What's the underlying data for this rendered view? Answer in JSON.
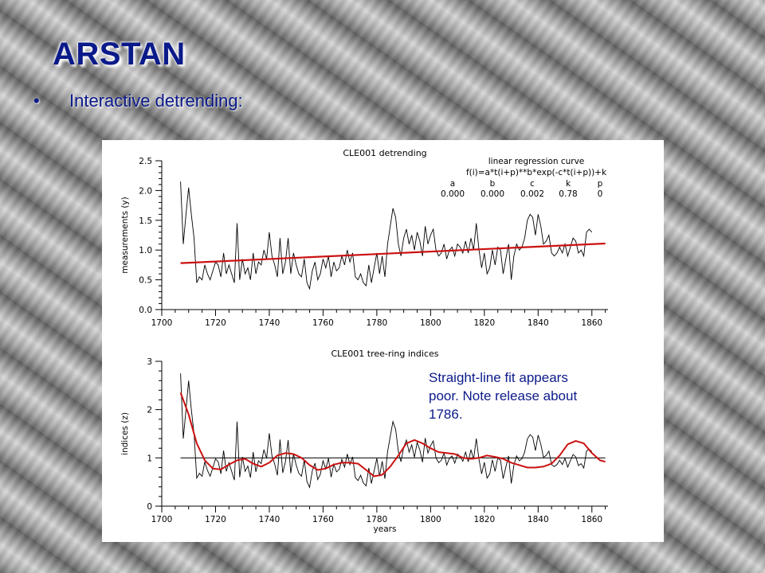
{
  "slide": {
    "title": "ARSTAN",
    "bullet": "Interactive detrending:",
    "note_lines": [
      "Straight-line fit appears",
      "poor. Note release about",
      "1786."
    ]
  },
  "colors": {
    "title": "#0b1a8a",
    "fit_curve": "#cc1111",
    "data_line": "#000000"
  },
  "chart_data": [
    {
      "type": "line",
      "title": "CLE001 detrending",
      "xlabel": "",
      "ylabel": "measurements (y)",
      "xlim": [
        1700,
        1866
      ],
      "ylim": [
        0.0,
        2.5
      ],
      "xticks": [
        "1700",
        "1720",
        "1740",
        "1760",
        "1780",
        "1800",
        "1820",
        "1840",
        "1860"
      ],
      "yticks": [
        "0.0",
        "0.5",
        "1.0",
        "1.5",
        "2.0",
        "2.5"
      ],
      "annotation": {
        "heading": "linear regression curve",
        "formula": "f(i)=a*t(i+p)**b*exp(-c*t(i+p))+k",
        "param_names": [
          "a",
          "b",
          "c",
          "k",
          "p"
        ],
        "param_values": [
          "0.000",
          "0.000",
          "0.002",
          "0.78",
          "0"
        ]
      },
      "series": [
        {
          "years_start": 1707,
          "years_end": 1865,
          "values": [
            2.15,
            1.1,
            1.6,
            2.05,
            1.6,
            1.2,
            0.45,
            0.55,
            0.5,
            0.75,
            0.6,
            0.5,
            0.65,
            0.8,
            0.75,
            0.55,
            0.95,
            0.6,
            0.75,
            0.6,
            0.45,
            1.45,
            0.5,
            0.85,
            0.6,
            0.7,
            0.5,
            0.95,
            0.6,
            0.8,
            0.75,
            1.0,
            0.85,
            1.3,
            0.9,
            0.75,
            0.55,
            1.2,
            0.6,
            0.8,
            1.2,
            0.6,
            0.95,
            0.75,
            0.6,
            0.55,
            0.85,
            0.45,
            0.35,
            0.65,
            0.8,
            0.5,
            0.6,
            0.85,
            0.7,
            0.9,
            0.55,
            0.8,
            0.65,
            0.7,
            0.9,
            0.75,
            1.0,
            0.8,
            0.95,
            0.55,
            0.5,
            0.6,
            0.45,
            0.4,
            0.75,
            0.45,
            0.7,
            0.95,
            0.6,
            0.9,
            0.55,
            1.1,
            1.4,
            1.7,
            1.55,
            1.1,
            0.9,
            1.2,
            1.35,
            1.1,
            1.25,
            1.0,
            1.3,
            1.15,
            0.9,
            1.4,
            1.1,
            1.25,
            1.35,
            1.0,
            0.9,
            0.95,
            1.1,
            0.85,
            1.0,
            1.05,
            0.9,
            1.1,
            1.05,
            0.95,
            1.15,
            0.95,
            1.2,
            1.0,
            1.45,
            1.0,
            0.7,
            0.95,
            0.6,
            0.7,
            1.0,
            0.75,
            1.05,
            1.0,
            0.6,
            0.85,
            1.1,
            0.5,
            0.9,
            1.1,
            1.0,
            1.05,
            1.2,
            1.5,
            1.6,
            1.55,
            1.25,
            1.6,
            1.4,
            1.1,
            1.15,
            1.25,
            0.95,
            0.9,
            0.95,
            1.05,
            0.95,
            1.1,
            0.9,
            1.05,
            1.2,
            1.15,
            0.95,
            1.0,
            0.9,
            1.3,
            1.35,
            1.3
          ]
        },
        {
          "name": "fit",
          "x": [
            1707,
            1865
          ],
          "values": [
            0.78,
            1.11
          ]
        }
      ]
    },
    {
      "type": "line",
      "title": "CLE001 tree-ring indices",
      "xlabel": "years",
      "ylabel": "indices (z)",
      "xlim": [
        1700,
        1866
      ],
      "ylim": [
        0,
        3
      ],
      "xticks": [
        "1700",
        "1720",
        "1740",
        "1760",
        "1780",
        "1800",
        "1820",
        "1840",
        "1860"
      ],
      "yticks": [
        "0",
        "1",
        "2",
        "3"
      ],
      "reference_line": 1,
      "series": [
        {
          "years_start": 1707,
          "years_end": 1865,
          "values": [
            2.75,
            1.4,
            2.0,
            2.6,
            2.0,
            1.5,
            0.58,
            0.68,
            0.62,
            0.92,
            0.74,
            0.62,
            0.8,
            0.98,
            0.92,
            0.67,
            1.15,
            0.72,
            0.9,
            0.72,
            0.54,
            1.75,
            0.6,
            1.02,
            0.72,
            0.83,
            0.59,
            1.12,
            0.71,
            0.94,
            0.88,
            1.17,
            0.99,
            1.51,
            1.04,
            0.87,
            0.64,
            1.38,
            0.69,
            0.92,
            1.37,
            0.68,
            1.08,
            0.85,
            0.68,
            0.62,
            0.96,
            0.51,
            0.39,
            0.73,
            0.89,
            0.55,
            0.66,
            0.94,
            0.77,
            0.99,
            0.6,
            0.87,
            0.71,
            0.76,
            0.97,
            0.81,
            1.08,
            0.86,
            1.02,
            0.59,
            0.53,
            0.64,
            0.48,
            0.42,
            0.79,
            0.47,
            0.73,
            0.99,
            0.62,
            0.93,
            0.57,
            1.13,
            1.44,
            1.75,
            1.59,
            1.13,
            0.92,
            1.22,
            1.37,
            1.12,
            1.27,
            1.01,
            1.32,
            1.16,
            0.91,
            1.41,
            1.1,
            1.25,
            1.35,
            1.0,
            0.9,
            0.95,
            1.1,
            0.85,
            0.99,
            1.04,
            0.89,
            1.08,
            1.03,
            0.93,
            1.12,
            0.92,
            1.17,
            0.97,
            1.4,
            0.97,
            0.67,
            0.91,
            0.58,
            0.67,
            0.96,
            0.72,
            1.0,
            0.95,
            0.57,
            0.81,
            1.04,
            0.47,
            0.85,
            1.04,
            0.94,
            0.98,
            1.12,
            1.39,
            1.48,
            1.43,
            1.15,
            1.47,
            1.28,
            1.01,
            1.05,
            1.14,
            0.86,
            0.82,
            0.86,
            0.95,
            0.86,
            0.99,
            0.81,
            0.94,
            1.07,
            1.02,
            0.84,
            0.88,
            0.79,
            1.14,
            1.18,
            1.13
          ]
        },
        {
          "name": "smooth",
          "x": [
            1707,
            1710,
            1713,
            1716,
            1719,
            1722,
            1725,
            1728,
            1731,
            1734,
            1737,
            1740,
            1743,
            1746,
            1749,
            1752,
            1755,
            1758,
            1761,
            1764,
            1767,
            1770,
            1773,
            1776,
            1779,
            1782,
            1785,
            1788,
            1791,
            1794,
            1797,
            1800,
            1803,
            1806,
            1809,
            1812,
            1815,
            1818,
            1821,
            1824,
            1827,
            1830,
            1833,
            1836,
            1839,
            1842,
            1845,
            1848,
            1851,
            1854,
            1857,
            1860,
            1863,
            1865
          ],
          "values": [
            2.35,
            1.9,
            1.3,
            0.95,
            0.78,
            0.76,
            0.86,
            0.95,
            0.98,
            0.88,
            0.82,
            0.9,
            1.05,
            1.1,
            1.08,
            1.0,
            0.85,
            0.75,
            0.78,
            0.86,
            0.9,
            0.9,
            0.88,
            0.75,
            0.62,
            0.65,
            0.82,
            1.05,
            1.3,
            1.37,
            1.3,
            1.2,
            1.12,
            1.1,
            1.08,
            1.0,
            0.98,
            1.0,
            1.05,
            1.02,
            0.98,
            0.9,
            0.85,
            0.8,
            0.8,
            0.82,
            0.88,
            1.05,
            1.28,
            1.35,
            1.3,
            1.1,
            0.95,
            0.92
          ]
        }
      ]
    }
  ]
}
